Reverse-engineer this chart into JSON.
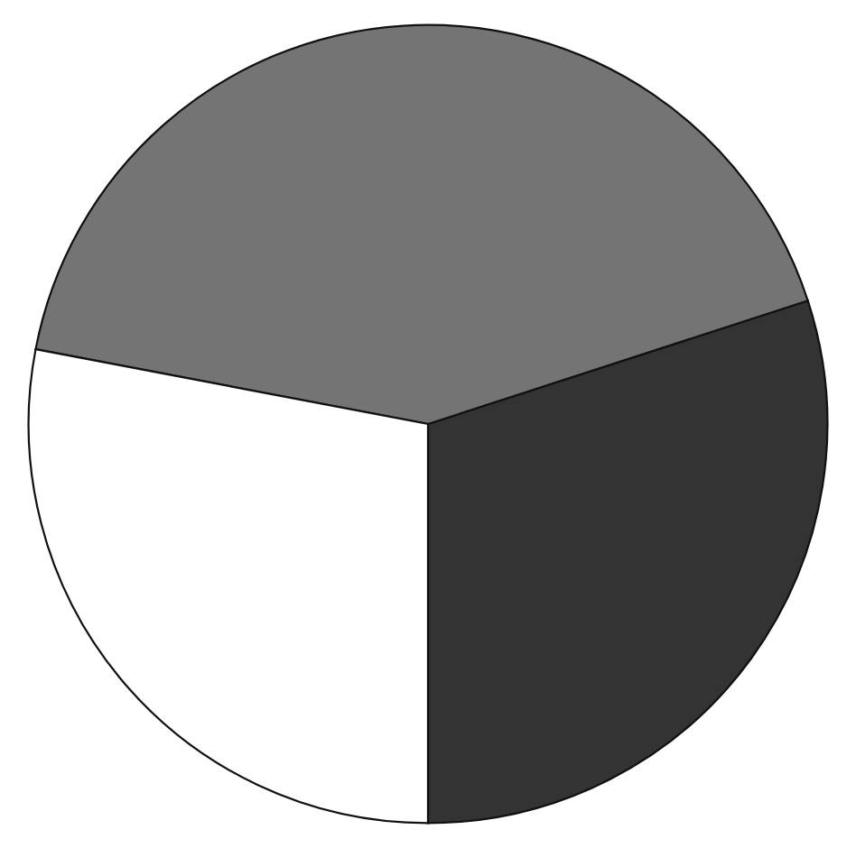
{
  "chart_data": {
    "type": "pie",
    "categories": [
      null,
      null,
      null
    ],
    "values": [
      30,
      42,
      28
    ],
    "colors": [
      "#333333",
      "#747474",
      "#ffffff"
    ]
  }
}
